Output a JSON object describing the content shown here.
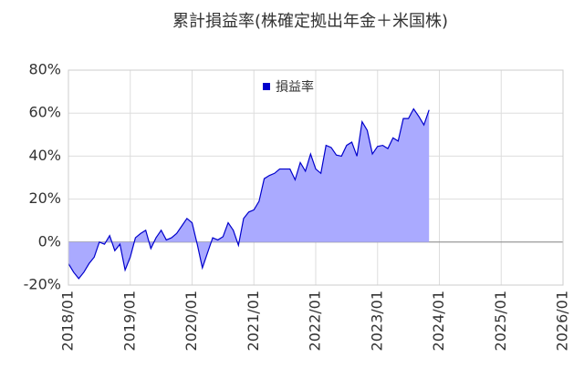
{
  "chart_data": {
    "type": "area",
    "title": "累計損益率(株確定拠出年金＋米国株)",
    "x": [
      "2018/01",
      "2018/02",
      "2018/03",
      "2018/04",
      "2018/05",
      "2018/06",
      "2018/07",
      "2018/08",
      "2018/09",
      "2018/10",
      "2018/11",
      "2018/12",
      "2019/01",
      "2019/02",
      "2019/03",
      "2019/04",
      "2019/05",
      "2019/06",
      "2019/07",
      "2019/08",
      "2019/09",
      "2019/10",
      "2019/11",
      "2019/12",
      "2020/01",
      "2020/02",
      "2020/03",
      "2020/04",
      "2020/05",
      "2020/06",
      "2020/07",
      "2020/08",
      "2020/09",
      "2020/10",
      "2020/11",
      "2020/12",
      "2021/01",
      "2021/02",
      "2021/03",
      "2021/04",
      "2021/05",
      "2021/06",
      "2021/07",
      "2021/08",
      "2021/09",
      "2021/10",
      "2021/11",
      "2021/12",
      "2022/01",
      "2022/02",
      "2022/03",
      "2022/04",
      "2022/05",
      "2022/06",
      "2022/07",
      "2022/08",
      "2022/09",
      "2022/10",
      "2022/11",
      "2022/12",
      "2023/01",
      "2023/02",
      "2023/03",
      "2023/04",
      "2023/05",
      "2023/06",
      "2023/07",
      "2023/08",
      "2023/09",
      "2023/10",
      "2023/11"
    ],
    "series": [
      {
        "name": "損益率",
        "color": "#0000cc",
        "fill": "#aaaaff",
        "values": [
          -10,
          -14,
          -17,
          -14,
          -10,
          -7,
          0,
          -1,
          3,
          -4,
          -1,
          -13,
          -7,
          2,
          4,
          5.5,
          -3,
          2,
          5.5,
          1,
          2,
          4,
          7.5,
          11,
          9,
          -1,
          -12,
          -5,
          2,
          1,
          2.5,
          9,
          5.5,
          -1.5,
          11,
          14,
          15,
          19,
          29.5,
          31,
          32,
          34,
          34,
          34,
          29,
          37,
          33,
          41,
          34,
          32,
          45,
          44,
          40.5,
          40,
          45,
          46.5,
          40,
          56,
          52,
          41,
          44.5,
          45,
          43.5,
          48.5,
          47,
          57.5,
          57.5,
          62,
          58.5,
          54.5,
          61.5
        ]
      }
    ],
    "xlim": [
      "2018/01",
      "2026/01"
    ],
    "xticks": [
      "2018/01",
      "2019/01",
      "2020/01",
      "2021/01",
      "2022/01",
      "2023/01",
      "2024/01",
      "2025/01",
      "2026/01"
    ],
    "ylim": [
      -20,
      80
    ],
    "yticks": [
      {
        "value": -20,
        "label": "-20%"
      },
      {
        "value": 0,
        "label": "0%"
      },
      {
        "value": 20,
        "label": "20%"
      },
      {
        "value": 40,
        "label": "40%"
      },
      {
        "value": 60,
        "label": "60%"
      },
      {
        "value": 80,
        "label": "80%"
      }
    ],
    "grid": true,
    "legend": "top"
  }
}
